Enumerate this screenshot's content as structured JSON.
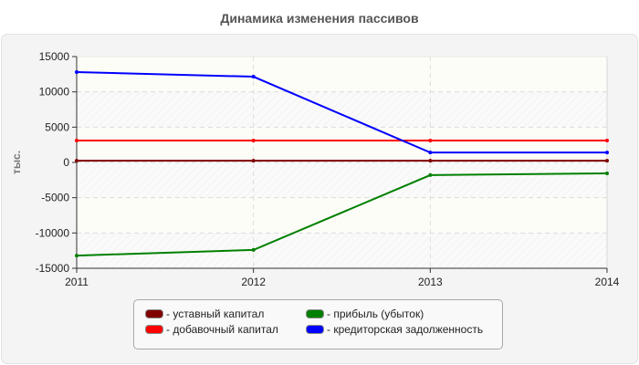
{
  "chart_data": {
    "type": "line",
    "title": "Динамика изменения пассивов",
    "xlabel": "",
    "ylabel": "тыс.",
    "x": [
      "2011",
      "2012",
      "2013",
      "2014"
    ],
    "ylim": [
      -15000,
      15000
    ],
    "yticks": [
      -15000,
      -10000,
      -5000,
      0,
      5000,
      10000,
      15000
    ],
    "grid": true,
    "legend_position": "bottom",
    "series": [
      {
        "name": "уставный капитал",
        "color": "#800000",
        "values": [
          250,
          250,
          250,
          250
        ]
      },
      {
        "name": "добавочный капитал",
        "color": "#ff0000",
        "values": [
          3100,
          3100,
          3100,
          3100
        ]
      },
      {
        "name": "прибыль (убыток)",
        "color": "#008000",
        "values": [
          -13200,
          -12400,
          -1800,
          -1550
        ]
      },
      {
        "name": "кредиторская задолженность",
        "color": "#0000ff",
        "values": [
          12800,
          12150,
          1400,
          1400
        ]
      }
    ]
  },
  "header": {
    "title": "Динамика изменения пассивов"
  },
  "axis": {
    "y_label": "тыс.",
    "y_ticks": [
      "15000",
      "10000",
      "5000",
      "0",
      "-5000",
      "-10000",
      "-15000"
    ],
    "x_ticks": [
      "2011",
      "2012",
      "2013",
      "2014"
    ]
  },
  "legend": {
    "items": [
      {
        "label": "- уставный капитал",
        "color": "#800000"
      },
      {
        "label": "- добавочный капитал",
        "color": "#ff0000"
      },
      {
        "label": "- прибыль (убыток)",
        "color": "#008000"
      },
      {
        "label": "- кредиторская задолженность",
        "color": "#0000ff"
      }
    ]
  }
}
